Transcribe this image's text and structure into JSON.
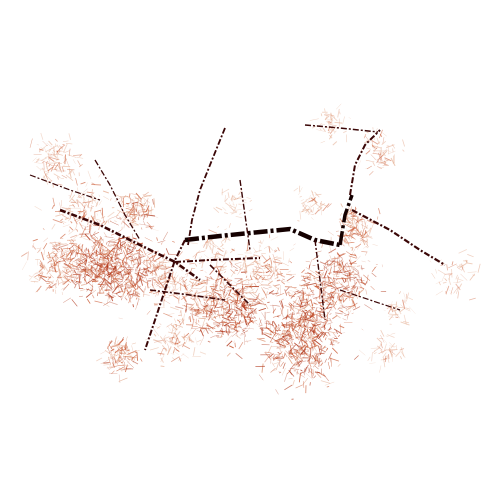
{
  "map": {
    "colors": {
      "background": "#ffffff",
      "fine_network_light": "#e0a080",
      "fine_network": "#c8522a",
      "fine_network_dense": "#b0361a",
      "main_route": "#3a0606",
      "main_route_dark": "#140000"
    }
  }
}
